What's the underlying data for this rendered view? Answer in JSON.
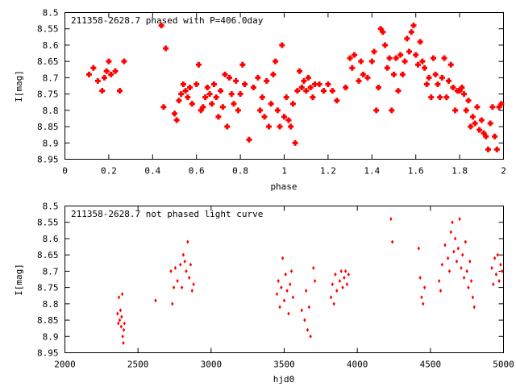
{
  "chart_data": [
    {
      "type": "scatter",
      "title": "211358-2628.7 phased with P=406.0day",
      "xlabel": "phase",
      "ylabel": "I[mag]",
      "xlim": [
        0,
        2
      ],
      "ylim": [
        8.95,
        8.5
      ],
      "y_inverted": true,
      "grid": false,
      "marker": "plus",
      "color": "#ff0000",
      "xticks": [
        "0",
        "0.2",
        "0.4",
        "0.6",
        "0.8",
        "1",
        "1.2",
        "1.4",
        "1.6",
        "1.8",
        "2"
      ],
      "yticks": [
        "8.5",
        "8.55",
        "8.6",
        "8.65",
        "8.7",
        "8.75",
        "8.8",
        "8.85",
        "8.9",
        "8.95"
      ],
      "x": [
        0.11,
        0.13,
        0.15,
        0.17,
        0.18,
        0.19,
        0.2,
        0.21,
        0.23,
        0.25,
        0.27,
        0.44,
        0.45,
        0.46,
        0.5,
        0.51,
        0.52,
        0.53,
        0.54,
        0.55,
        0.56,
        0.57,
        0.58,
        0.6,
        0.61,
        0.62,
        0.63,
        0.64,
        0.65,
        0.66,
        0.67,
        0.68,
        0.69,
        0.7,
        0.71,
        0.72,
        0.73,
        0.74,
        0.75,
        0.76,
        0.77,
        0.78,
        0.79,
        0.8,
        0.81,
        0.82,
        0.84,
        0.86,
        0.88,
        0.89,
        0.9,
        0.91,
        0.92,
        0.93,
        0.94,
        0.95,
        0.96,
        0.97,
        0.98,
        0.99,
        1.0,
        1.01,
        1.02,
        1.03,
        1.04,
        1.05,
        1.06,
        1.07,
        1.08,
        1.09,
        1.1,
        1.11,
        1.12,
        1.13,
        1.14,
        1.16,
        1.18,
        1.2,
        1.22,
        1.24,
        1.28,
        1.3,
        1.31,
        1.32,
        1.34,
        1.35,
        1.36,
        1.38,
        1.4,
        1.41,
        1.42,
        1.43,
        1.44,
        1.45,
        1.46,
        1.47,
        1.48,
        1.49,
        1.5,
        1.51,
        1.52,
        1.53,
        1.54,
        1.55,
        1.56,
        1.57,
        1.58,
        1.59,
        1.6,
        1.61,
        1.62,
        1.63,
        1.64,
        1.65,
        1.66,
        1.67,
        1.68,
        1.69,
        1.7,
        1.71,
        1.72,
        1.73,
        1.74,
        1.75,
        1.76,
        1.77,
        1.78,
        1.79,
        1.8,
        1.81,
        1.82,
        1.83,
        1.84,
        1.85,
        1.86,
        1.87,
        1.88,
        1.89,
        1.9,
        1.91,
        1.92,
        1.93,
        1.94,
        1.95,
        1.96,
        1.97,
        1.98,
        1.99
      ],
      "y": [
        8.69,
        8.67,
        8.71,
        8.74,
        8.7,
        8.68,
        8.65,
        8.69,
        8.68,
        8.74,
        8.65,
        8.54,
        8.79,
        8.61,
        8.81,
        8.83,
        8.77,
        8.75,
        8.72,
        8.74,
        8.76,
        8.73,
        8.78,
        8.72,
        8.66,
        8.8,
        8.79,
        8.76,
        8.73,
        8.75,
        8.78,
        8.72,
        8.76,
        8.82,
        8.74,
        8.79,
        8.69,
        8.85,
        8.7,
        8.75,
        8.78,
        8.71,
        8.8,
        8.75,
        8.66,
        8.72,
        8.89,
        8.73,
        8.7,
        8.8,
        8.76,
        8.82,
        8.71,
        8.85,
        8.78,
        8.69,
        8.65,
        8.8,
        8.85,
        8.6,
        8.82,
        8.76,
        8.83,
        8.85,
        8.78,
        8.9,
        8.74,
        8.68,
        8.73,
        8.71,
        8.74,
        8.7,
        8.73,
        8.76,
        8.72,
        8.72,
        8.74,
        8.72,
        8.74,
        8.77,
        8.73,
        8.64,
        8.67,
        8.63,
        8.71,
        8.65,
        8.69,
        8.7,
        8.65,
        8.62,
        8.8,
        8.73,
        8.55,
        8.56,
        8.6,
        8.67,
        8.64,
        8.8,
        8.69,
        8.64,
        8.74,
        8.63,
        8.69,
        8.65,
        8.58,
        8.62,
        8.56,
        8.54,
        8.63,
        8.66,
        8.59,
        8.65,
        8.67,
        8.72,
        8.7,
        8.76,
        8.64,
        8.69,
        8.72,
        8.76,
        8.7,
        8.64,
        8.76,
        8.71,
        8.66,
        8.73,
        8.8,
        8.74,
        8.74,
        8.73,
        8.75,
        8.8,
        8.77,
        8.85,
        8.82,
        8.84,
        8.79,
        8.86,
        8.83,
        8.87,
        8.88,
        8.92,
        8.84,
        8.79,
        8.88,
        8.92,
        8.79,
        8.78
      ]
    },
    {
      "type": "scatter",
      "title": "211358-2628.7 not phased light curve",
      "xlabel": "hjd0",
      "ylabel": "I[mag]",
      "xlim": [
        2000,
        5000
      ],
      "ylim": [
        8.95,
        8.5
      ],
      "y_inverted": true,
      "grid": false,
      "marker": "diamond",
      "color": "#ff0000",
      "xticks": [
        "2000",
        "2500",
        "3000",
        "3500",
        "4000",
        "4500",
        "5000"
      ],
      "yticks": [
        "8.5",
        "8.55",
        "8.6",
        "8.65",
        "8.7",
        "8.75",
        "8.8",
        "8.85",
        "8.9",
        "8.95"
      ],
      "x": [
        2360,
        2365,
        2370,
        2375,
        2380,
        2385,
        2388,
        2392,
        2395,
        2400,
        2403,
        2407,
        2620,
        2725,
        2735,
        2745,
        2755,
        2770,
        2790,
        2800,
        2810,
        2820,
        2830,
        2840,
        2850,
        2860,
        2870,
        2880,
        3450,
        3460,
        3470,
        3480,
        3490,
        3500,
        3510,
        3520,
        3530,
        3540,
        3550,
        3560,
        3620,
        3640,
        3650,
        3660,
        3670,
        3680,
        3700,
        3710,
        3820,
        3830,
        3840,
        3850,
        3860,
        3880,
        3890,
        3900,
        3910,
        3920,
        3930,
        3940,
        4230,
        4240,
        4420,
        4430,
        4440,
        4450,
        4460,
        4560,
        4570,
        4580,
        4600,
        4620,
        4630,
        4640,
        4650,
        4660,
        4670,
        4680,
        4690,
        4700,
        4710,
        4720,
        4730,
        4740,
        4750,
        4760,
        4770,
        4780,
        4790,
        4800,
        4920,
        4930,
        4940,
        4950,
        4960,
        4970,
        4980,
        4990
      ],
      "y": [
        8.83,
        8.86,
        8.78,
        8.85,
        8.82,
        8.87,
        8.84,
        8.77,
        8.9,
        8.92,
        8.88,
        8.86,
        8.79,
        8.7,
        8.8,
        8.75,
        8.69,
        8.73,
        8.68,
        8.75,
        8.65,
        8.67,
        8.7,
        8.61,
        8.72,
        8.68,
        8.76,
        8.74,
        8.77,
        8.73,
        8.81,
        8.75,
        8.66,
        8.79,
        8.71,
        8.76,
        8.83,
        8.74,
        8.7,
        8.78,
        8.82,
        8.85,
        8.76,
        8.88,
        8.81,
        8.9,
        8.69,
        8.73,
        8.78,
        8.74,
        8.8,
        8.71,
        8.76,
        8.73,
        8.7,
        8.75,
        8.72,
        8.7,
        8.74,
        8.71,
        8.54,
        8.61,
        8.63,
        8.72,
        8.78,
        8.8,
        8.75,
        8.73,
        8.76,
        8.68,
        8.62,
        8.66,
        8.7,
        8.58,
        8.55,
        8.64,
        8.6,
        8.67,
        8.63,
        8.54,
        8.69,
        8.65,
        8.72,
        8.61,
        8.7,
        8.75,
        8.67,
        8.73,
        8.78,
        8.81,
        8.69,
        8.74,
        8.66,
        8.71,
        8.65,
        8.73,
        8.68,
        8.7
      ]
    }
  ]
}
